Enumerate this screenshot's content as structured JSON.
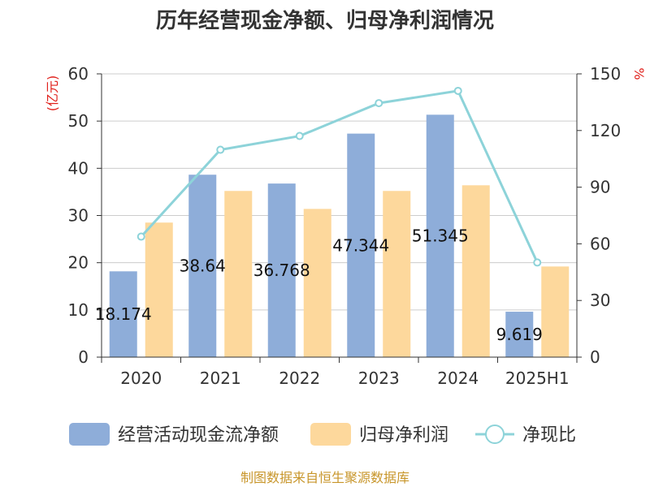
{
  "chart_data": {
    "type": "bar",
    "title": "历年经营现金净额、归母净利润情况",
    "categories": [
      "2020",
      "2021",
      "2022",
      "2023",
      "2024",
      "2025H1"
    ],
    "series": [
      {
        "name": "经营活动现金流净额",
        "kind": "bar",
        "axis": "left",
        "color": "#8eadd9",
        "values": [
          18.174,
          38.64,
          36.768,
          47.344,
          51.345,
          9.619
        ],
        "labels": [
          "18.174",
          "38.64",
          "36.768",
          "47.344",
          "51.345",
          "9.619"
        ]
      },
      {
        "name": "归母净利润",
        "kind": "bar",
        "axis": "left",
        "color": "#fdd89c",
        "values": [
          28.5,
          35.2,
          31.4,
          35.2,
          36.4,
          19.2
        ]
      },
      {
        "name": "净现比",
        "kind": "line",
        "axis": "right",
        "color": "#8dd3d9",
        "values": [
          63.8,
          109.8,
          117.1,
          134.5,
          141.0,
          50.1
        ]
      }
    ],
    "y_left": {
      "unit": "(亿元)",
      "min": 0,
      "max": 60,
      "ticks": [
        0,
        10,
        20,
        30,
        40,
        50,
        60
      ]
    },
    "y_right": {
      "unit": "%",
      "min": 0,
      "max": 150,
      "ticks": [
        0,
        30,
        60,
        90,
        120,
        150
      ]
    },
    "grid": true,
    "legend_position": "bottom"
  },
  "source_text": "制图数据来自恒生聚源数据库"
}
